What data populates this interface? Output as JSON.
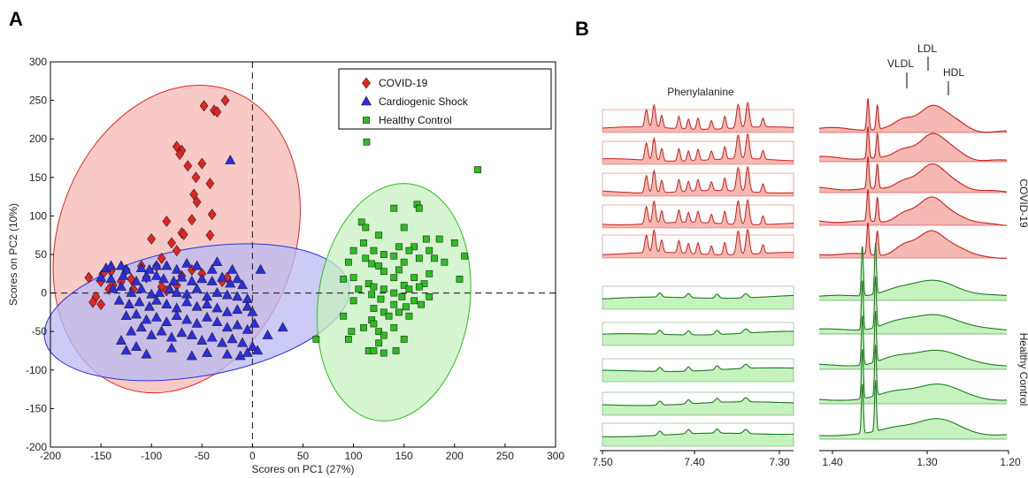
{
  "panels": {
    "a": "A",
    "b": "B"
  },
  "colors": {
    "covid": "#e8231f",
    "cardio": "#2b2ee0",
    "healthy": "#2bbf1f",
    "covid_fill": "#f6b8b2",
    "cardio_fill": "#b9b9f1",
    "healthy_fill": "#c6f2bf",
    "covid_line": "#c9201c",
    "healthy_line": "#1e7a1e"
  },
  "chart_data": [
    {
      "type": "scatter",
      "title": "",
      "xlabel": "Scores on PC1 (27%)",
      "ylabel": "Scores on PC2 (10%)",
      "xlim": [
        -200,
        300
      ],
      "ylim": [
        -200,
        300
      ],
      "xticks": [
        -200,
        -150,
        -100,
        -50,
        0,
        50,
        100,
        150,
        200,
        250,
        300
      ],
      "yticks": [
        -200,
        -150,
        -100,
        -50,
        0,
        50,
        100,
        150,
        200,
        250,
        300
      ],
      "legend_position": "top-right",
      "reference_lines": {
        "x": 0,
        "y": 0
      },
      "series": [
        {
          "name": "COVID-19",
          "marker": "diamond",
          "ellipse": {
            "cx": -75,
            "cy": 70,
            "rx": 117,
            "ry": 205,
            "angle_deg": 20
          },
          "points": [
            [
              -27,
              250
            ],
            [
              -48,
              243
            ],
            [
              -38,
              237
            ],
            [
              -35,
              235
            ],
            [
              -75,
              190
            ],
            [
              -70,
              185
            ],
            [
              -72,
              180
            ],
            [
              -50,
              168
            ],
            [
              -64,
              165
            ],
            [
              -56,
              150
            ],
            [
              -42,
              142
            ],
            [
              -58,
              128
            ],
            [
              -55,
              118
            ],
            [
              -40,
              102
            ],
            [
              -60,
              95
            ],
            [
              -85,
              93
            ],
            [
              -70,
              78
            ],
            [
              -68,
              76
            ],
            [
              -42,
              75
            ],
            [
              -100,
              70
            ],
            [
              -80,
              65
            ],
            [
              -75,
              55
            ],
            [
              -90,
              45
            ],
            [
              -110,
              35
            ],
            [
              -125,
              30
            ],
            [
              -140,
              28
            ],
            [
              -148,
              25
            ],
            [
              -95,
              35
            ],
            [
              -60,
              30
            ],
            [
              -50,
              25
            ],
            [
              -105,
              20
            ],
            [
              -120,
              18
            ],
            [
              -150,
              15
            ],
            [
              -162,
              20
            ],
            [
              -138,
              10
            ],
            [
              -142,
              5
            ],
            [
              -90,
              8
            ],
            [
              -118,
              5
            ],
            [
              -75,
              10
            ],
            [
              -85,
              3
            ],
            [
              -155,
              -5
            ],
            [
              -158,
              -12
            ],
            [
              -150,
              -15
            ],
            [
              -30,
              15
            ],
            [
              -25,
              20
            ],
            [
              -70,
              22
            ],
            [
              -130,
              15
            ]
          ]
        },
        {
          "name": "Cardiogenic Shock",
          "marker": "triangle",
          "ellipse": {
            "cx": -55,
            "cy": -25,
            "rx": 153,
            "ry": 83,
            "angle_deg": -10
          },
          "points": [
            [
              -22,
              172
            ],
            [
              -145,
              32
            ],
            [
              -140,
              35
            ],
            [
              -130,
              35
            ],
            [
              -125,
              30
            ],
            [
              -110,
              32
            ],
            [
              -102,
              30
            ],
            [
              -95,
              35
            ],
            [
              -85,
              35
            ],
            [
              -75,
              30
            ],
            [
              -65,
              38
            ],
            [
              -55,
              35
            ],
            [
              -40,
              30
            ],
            [
              -35,
              40
            ],
            [
              -20,
              30
            ],
            [
              8,
              30
            ],
            [
              -150,
              20
            ],
            [
              -140,
              18
            ],
            [
              -128,
              22
            ],
            [
              -115,
              15
            ],
            [
              -105,
              20
            ],
            [
              -95,
              22
            ],
            [
              -88,
              18
            ],
            [
              -78,
              15
            ],
            [
              -70,
              20
            ],
            [
              -60,
              15
            ],
            [
              -50,
              18
            ],
            [
              -40,
              15
            ],
            [
              -30,
              20
            ],
            [
              -22,
              12
            ],
            [
              -15,
              18
            ],
            [
              -10,
              10
            ],
            [
              -138,
              5
            ],
            [
              -130,
              8
            ],
            [
              -120,
              0
            ],
            [
              -110,
              5
            ],
            [
              -100,
              -2
            ],
            [
              -92,
              0
            ],
            [
              -82,
              5
            ],
            [
              -75,
              0
            ],
            [
              -65,
              -2
            ],
            [
              -55,
              5
            ],
            [
              -45,
              -5
            ],
            [
              -35,
              0
            ],
            [
              -25,
              -3
            ],
            [
              -15,
              -5
            ],
            [
              -5,
              -8
            ],
            [
              -132,
              -10
            ],
            [
              -122,
              -15
            ],
            [
              -112,
              -12
            ],
            [
              -102,
              -18
            ],
            [
              -95,
              -10
            ],
            [
              -85,
              -15
            ],
            [
              -75,
              -20
            ],
            [
              -65,
              -12
            ],
            [
              -55,
              -18
            ],
            [
              -45,
              -15
            ],
            [
              -35,
              -20
            ],
            [
              -25,
              -25
            ],
            [
              -15,
              -22
            ],
            [
              -5,
              -18
            ],
            [
              0,
              -25
            ],
            [
              -125,
              -30
            ],
            [
              -115,
              -28
            ],
            [
              -105,
              -35
            ],
            [
              -95,
              -32
            ],
            [
              -85,
              -38
            ],
            [
              -75,
              -30
            ],
            [
              -65,
              -35
            ],
            [
              -55,
              -40
            ],
            [
              -45,
              -32
            ],
            [
              -35,
              -38
            ],
            [
              -25,
              -45
            ],
            [
              -15,
              -42
            ],
            [
              -5,
              -48
            ],
            [
              2,
              -40
            ],
            [
              -120,
              -50
            ],
            [
              -110,
              -45
            ],
            [
              -100,
              -55
            ],
            [
              -90,
              -50
            ],
            [
              -80,
              -58
            ],
            [
              -70,
              -52
            ],
            [
              -60,
              -55
            ],
            [
              -50,
              -62
            ],
            [
              -40,
              -58
            ],
            [
              -30,
              -65
            ],
            [
              -20,
              -60
            ],
            [
              -10,
              -65
            ],
            [
              0,
              -70
            ],
            [
              5,
              -75
            ],
            [
              -130,
              -62
            ],
            [
              -125,
              -75
            ],
            [
              -115,
              -70
            ],
            [
              -105,
              -80
            ],
            [
              -80,
              -72
            ],
            [
              -45,
              -78
            ],
            [
              -25,
              -80
            ],
            [
              -12,
              -82
            ],
            [
              -5,
              -78
            ],
            [
              15,
              -55
            ],
            [
              30,
              -45
            ],
            [
              -60,
              -82
            ]
          ]
        },
        {
          "name": "Healthy Control",
          "marker": "square",
          "ellipse": {
            "cx": 140,
            "cy": -12,
            "rx": 75,
            "ry": 155,
            "angle_deg": 8
          },
          "points": [
            [
              113,
              196
            ],
            [
              223,
              160
            ],
            [
              163,
              115
            ],
            [
              165,
              110
            ],
            [
              140,
              110
            ],
            [
              108,
              92
            ],
            [
              112,
              85
            ],
            [
              150,
              85
            ],
            [
              125,
              75
            ],
            [
              172,
              70
            ],
            [
              185,
              70
            ],
            [
              110,
              65
            ],
            [
              145,
              60
            ],
            [
              160,
              60
            ],
            [
              200,
              65
            ],
            [
              100,
              55
            ],
            [
              120,
              55
            ],
            [
              155,
              55
            ],
            [
              175,
              55
            ],
            [
              130,
              50
            ],
            [
              210,
              48
            ],
            [
              112,
              45
            ],
            [
              140,
              48
            ],
            [
              165,
              45
            ],
            [
              180,
              45
            ],
            [
              95,
              40
            ],
            [
              118,
              38
            ],
            [
              150,
              40
            ],
            [
              190,
              40
            ],
            [
              125,
              35
            ],
            [
              145,
              30
            ],
            [
              175,
              25
            ],
            [
              130,
              28
            ],
            [
              100,
              20
            ],
            [
              140,
              20
            ],
            [
              160,
              20
            ],
            [
              205,
              18
            ],
            [
              115,
              12
            ],
            [
              120,
              8
            ],
            [
              150,
              10
            ],
            [
              170,
              12
            ],
            [
              90,
              18
            ],
            [
              105,
              5
            ],
            [
              130,
              5
            ],
            [
              140,
              0
            ],
            [
              155,
              5
            ],
            [
              165,
              8
            ],
            [
              118,
              -2
            ],
            [
              127,
              -8
            ],
            [
              148,
              -5
            ],
            [
              160,
              -10
            ],
            [
              175,
              -5
            ],
            [
              100,
              -10
            ],
            [
              140,
              -15
            ],
            [
              152,
              -18
            ],
            [
              167,
              -15
            ],
            [
              120,
              -20
            ],
            [
              130,
              -25
            ],
            [
              145,
              -25
            ],
            [
              118,
              -35
            ],
            [
              135,
              -30
            ],
            [
              155,
              -30
            ],
            [
              90,
              -30
            ],
            [
              110,
              -45
            ],
            [
              120,
              -40
            ],
            [
              125,
              -50
            ],
            [
              140,
              -45
            ],
            [
              98,
              -50
            ],
            [
              130,
              -55
            ],
            [
              150,
              -60
            ],
            [
              95,
              -60
            ],
            [
              125,
              -65
            ],
            [
              115,
              -75
            ],
            [
              120,
              -75
            ],
            [
              130,
              -78
            ],
            [
              142,
              -75
            ],
            [
              63,
              -60
            ]
          ]
        }
      ]
    },
    {
      "type": "line",
      "title": "",
      "region_label": "Phenylalanine",
      "xlabel": "",
      "xlim": [
        7.5,
        7.3
      ],
      "xticks": [
        "7.50",
        "7.40",
        "7.30"
      ],
      "reversed_x": true,
      "groups": [
        {
          "name": "COVID-19",
          "count": 5
        },
        {
          "name": "Healthy Control",
          "count": 5
        }
      ]
    },
    {
      "type": "line",
      "title": "",
      "xlabel": "",
      "xlim": [
        1.4,
        1.2
      ],
      "xticks": [
        "1.40",
        "1.30",
        "1.20"
      ],
      "reversed_x": true,
      "peak_labels": [
        {
          "label": "VLDL",
          "ppm": 1.32
        },
        {
          "label": "LDL",
          "ppm": 1.295
        },
        {
          "label": "HDL",
          "ppm": 1.262
        }
      ],
      "groups": [
        {
          "name": "COVID-19",
          "count": 5
        },
        {
          "name": "Healthy Control",
          "count": 5
        }
      ]
    }
  ]
}
